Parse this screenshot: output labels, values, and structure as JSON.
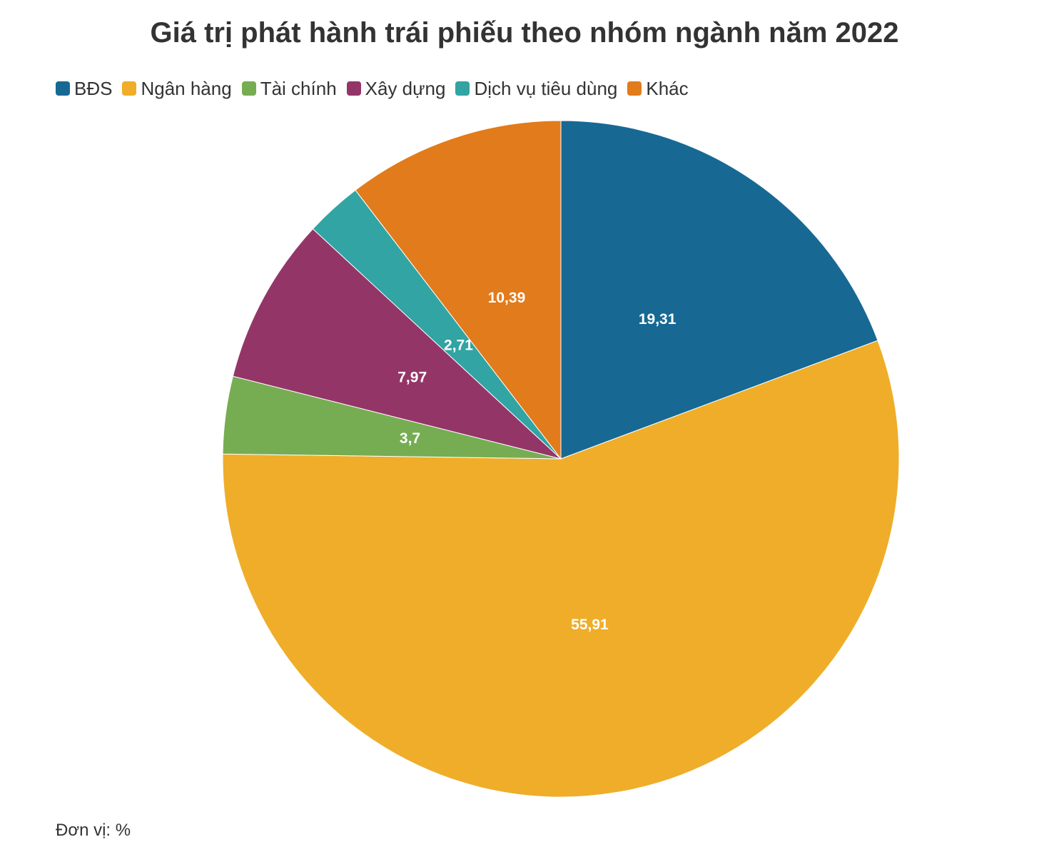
{
  "chart_data": {
    "type": "pie",
    "title": "Giá trị phát hành trái phiếu theo nhóm ngành năm 2022",
    "unit_note": "Đơn vị: %",
    "legend_position": "top-left",
    "slices": [
      {
        "name": "BĐS",
        "value": 19.31,
        "label": "19,31",
        "color": "#176994"
      },
      {
        "name": "Ngân hàng",
        "value": 55.91,
        "label": "55,91",
        "color": "#efad29"
      },
      {
        "name": "Tài chính",
        "value": 3.7,
        "label": "3,7",
        "color": "#76ad52"
      },
      {
        "name": "Xây dựng",
        "value": 7.97,
        "label": "7,97",
        "color": "#943568"
      },
      {
        "name": "Dịch vụ tiêu dùng",
        "value": 2.71,
        "label": "2,71",
        "color": "#31a4a3"
      },
      {
        "name": "Khác",
        "value": 10.39,
        "label": "10,39",
        "color": "#e27b1c"
      }
    ]
  }
}
